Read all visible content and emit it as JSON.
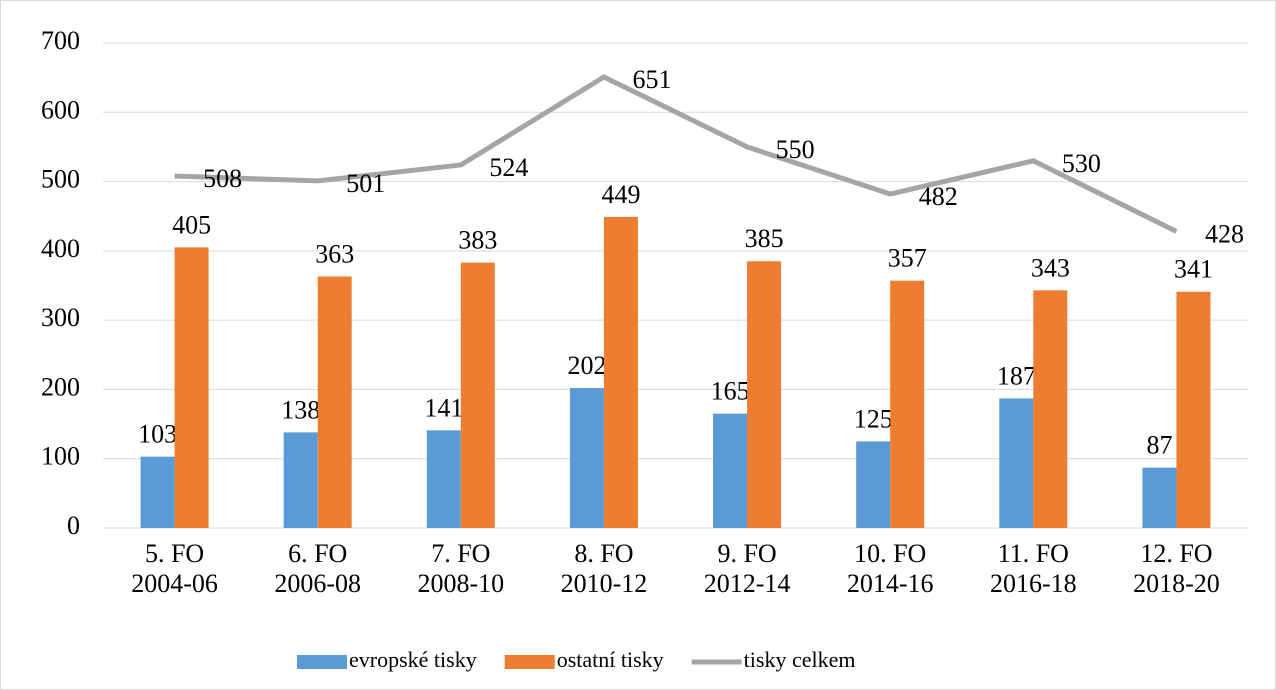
{
  "chart_data": {
    "type": "bar",
    "categories": [
      [
        "5. FO",
        "2004-06"
      ],
      [
        "6. FO",
        "2006-08"
      ],
      [
        "7. FO",
        "2008-10"
      ],
      [
        "8. FO",
        "2010-12"
      ],
      [
        "9. FO",
        "2012-14"
      ],
      [
        "10. FO",
        "2014-16"
      ],
      [
        "11. FO",
        "2016-18"
      ],
      [
        "12. FO",
        "2018-20"
      ]
    ],
    "series": [
      {
        "name": "evropské tisky",
        "color": "#5b9bd5",
        "type": "bar",
        "values": [
          103,
          138,
          141,
          202,
          165,
          125,
          187,
          87
        ]
      },
      {
        "name": "ostatní tisky",
        "color": "#ed7d31",
        "type": "bar",
        "values": [
          405,
          363,
          383,
          449,
          385,
          357,
          343,
          341
        ]
      },
      {
        "name": "tisky celkem",
        "color": "#a5a5a5",
        "type": "line",
        "values": [
          508,
          501,
          524,
          651,
          550,
          482,
          530,
          428
        ]
      }
    ],
    "ylim": [
      0,
      700
    ],
    "yticks": [
      0,
      100,
      200,
      300,
      400,
      500,
      600,
      700
    ],
    "grid": true,
    "legend": "bottom"
  }
}
